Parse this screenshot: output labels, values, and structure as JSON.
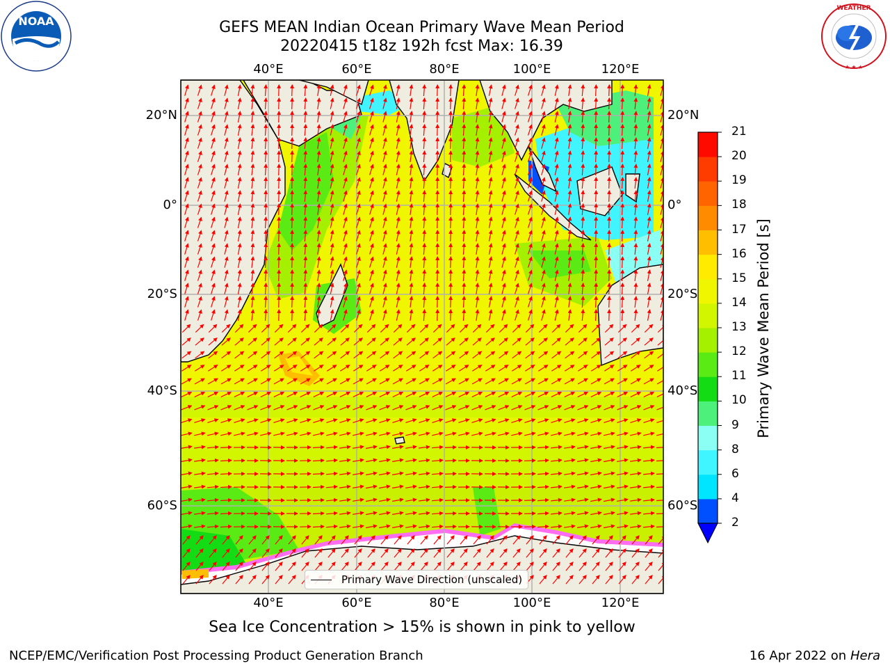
{
  "title": {
    "line1": "GEFS MEAN Indian Ocean Primary Wave Mean Period",
    "line2": "20220415 t18z 192h fcst   Max: 16.39"
  },
  "map": {
    "lon_ticks": [
      "40°E",
      "60°E",
      "80°E",
      "100°E",
      "120°E"
    ],
    "lat_ticks": [
      "20°N",
      "0°",
      "20°S",
      "40°S",
      "60°S"
    ],
    "colors": {
      "land": "#efeddf",
      "grid": "#b0b0b0",
      "arrow": "#ff0000",
      "ice": "#ffffff"
    }
  },
  "legend": {
    "label": "Primary Wave Direction (unscaled)"
  },
  "colorbar": {
    "title": "Primary Wave Mean Period [s]",
    "levels": [
      "2",
      "4",
      "6",
      "8",
      "9",
      "10",
      "11",
      "12",
      "13",
      "14",
      "15",
      "16",
      "17",
      "18",
      "19",
      "20",
      "21"
    ],
    "colors": [
      "#0050ff",
      "#00e5ff",
      "#40f5ff",
      "#8cfff5",
      "#4cf07a",
      "#14dc14",
      "#5aeb14",
      "#a5f000",
      "#d2f500",
      "#f0f500",
      "#ffeb00",
      "#ffbe00",
      "#ff8c00",
      "#ff6400",
      "#ff3c00",
      "#ff0a00"
    ],
    "extend_color": "#0000ff"
  },
  "caption": "Sea Ice Concentration > 15% is shown in pink to yellow",
  "footer": {
    "left": "NCEP/EMC/Verification Post Processing Product Generation Branch",
    "right_date": "16 Apr 2022 on ",
    "right_host": "Hera"
  },
  "logos": {
    "noaa": "NOAA",
    "nws": "NATIONAL WEATHER SERVICE"
  }
}
